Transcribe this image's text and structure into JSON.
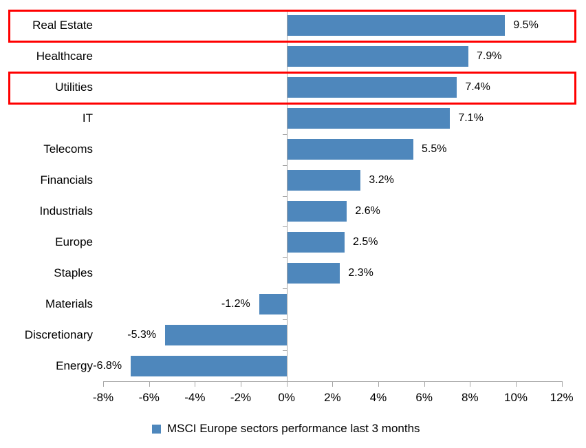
{
  "chart_data": {
    "type": "bar",
    "orientation": "horizontal",
    "title": "",
    "legend": "MSCI Europe sectors performance last 3 months",
    "legend_position": "bottom-center",
    "categories": [
      "Real Estate",
      "Healthcare",
      "Utilities",
      "IT",
      "Telecoms",
      "Financials",
      "Industrials",
      "Europe",
      "Staples",
      "Materials",
      "Discretionary",
      "Energy"
    ],
    "values": [
      9.5,
      7.9,
      7.4,
      7.1,
      5.5,
      3.2,
      2.6,
      2.5,
      2.3,
      -1.2,
      -5.3,
      -6.8
    ],
    "data_labels": [
      "9.5%",
      "7.9%",
      "7.4%",
      "7.1%",
      "5.5%",
      "3.2%",
      "2.6%",
      "2.5%",
      "2.3%",
      "-1.2%",
      "-5.3%",
      "-6.8%"
    ],
    "x_ticks": [
      {
        "value": -8,
        "label": "-8%"
      },
      {
        "value": -6,
        "label": "-6%"
      },
      {
        "value": -4,
        "label": "-4%"
      },
      {
        "value": -2,
        "label": "-2%"
      },
      {
        "value": 0,
        "label": "0%"
      },
      {
        "value": 2,
        "label": "2%"
      },
      {
        "value": 4,
        "label": "4%"
      },
      {
        "value": 6,
        "label": "6%"
      },
      {
        "value": 8,
        "label": "8%"
      },
      {
        "value": 10,
        "label": "10%"
      },
      {
        "value": 12,
        "label": "12%"
      }
    ],
    "xlim": [
      -8,
      12
    ],
    "grid": false,
    "bar_color": "#4E87BC",
    "axis_color": "#A6A6A6",
    "text_color": "#000000",
    "highlight_box_color": "#FF0000",
    "highlighted_categories": [
      "Real Estate",
      "Utilities"
    ]
  }
}
